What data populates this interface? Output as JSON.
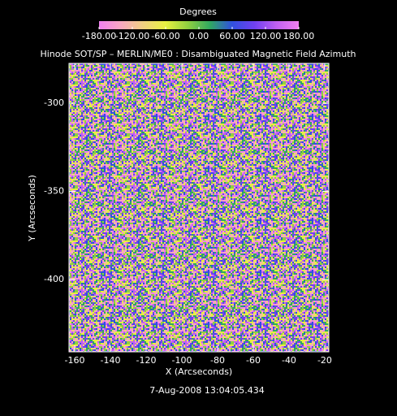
{
  "chart_data": {
    "type": "image",
    "title": "Hinode SOT/SP – MERLIN/ME0 : Disambiguated Magnetic Field Azimuth",
    "xlabel": "X (Arcseconds)",
    "ylabel": "Y (Arcseconds)",
    "date": "7-Aug-2008 13:04:05.434",
    "xlim": [
      -163.2,
      -17.7
    ],
    "xticks": [
      -160,
      -140,
      -120,
      -100,
      -80,
      -60,
      -40,
      -20
    ],
    "ylim": [
      -441,
      -277.4
    ],
    "yticks": [
      -300,
      -350,
      -400
    ],
    "colorbar": {
      "title": "Degrees",
      "lim": [
        -180,
        180
      ],
      "ticks": [
        {
          "value": -180,
          "label": "-180.00"
        },
        {
          "value": -120,
          "label": "-120.00"
        },
        {
          "value": -60,
          "label": "-60.00"
        },
        {
          "value": 0,
          "label": "0.00"
        },
        {
          "value": 60,
          "label": "60.00"
        },
        {
          "value": 120,
          "label": "120.00"
        },
        {
          "value": 180,
          "label": "180.00"
        }
      ],
      "colormap": [
        "#f080f0",
        "#f8a8c0",
        "#f0d080",
        "#e8f040",
        "#90d040",
        "#30a860",
        "#3050e0",
        "#7040f0",
        "#c060f0",
        "#f080f0"
      ]
    }
  }
}
